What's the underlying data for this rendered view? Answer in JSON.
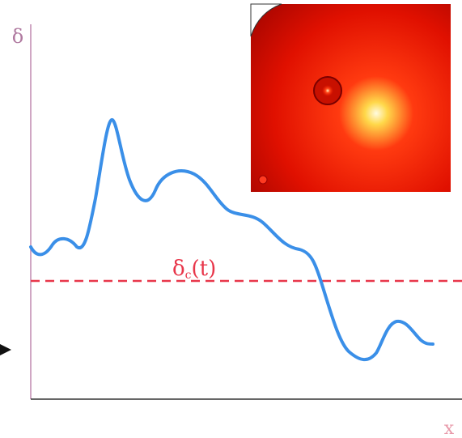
{
  "axes": {
    "y_label": "δ",
    "x_label": "x"
  },
  "threshold": {
    "label": "δ",
    "subscript": "c",
    "argument": "(t)"
  }
}
